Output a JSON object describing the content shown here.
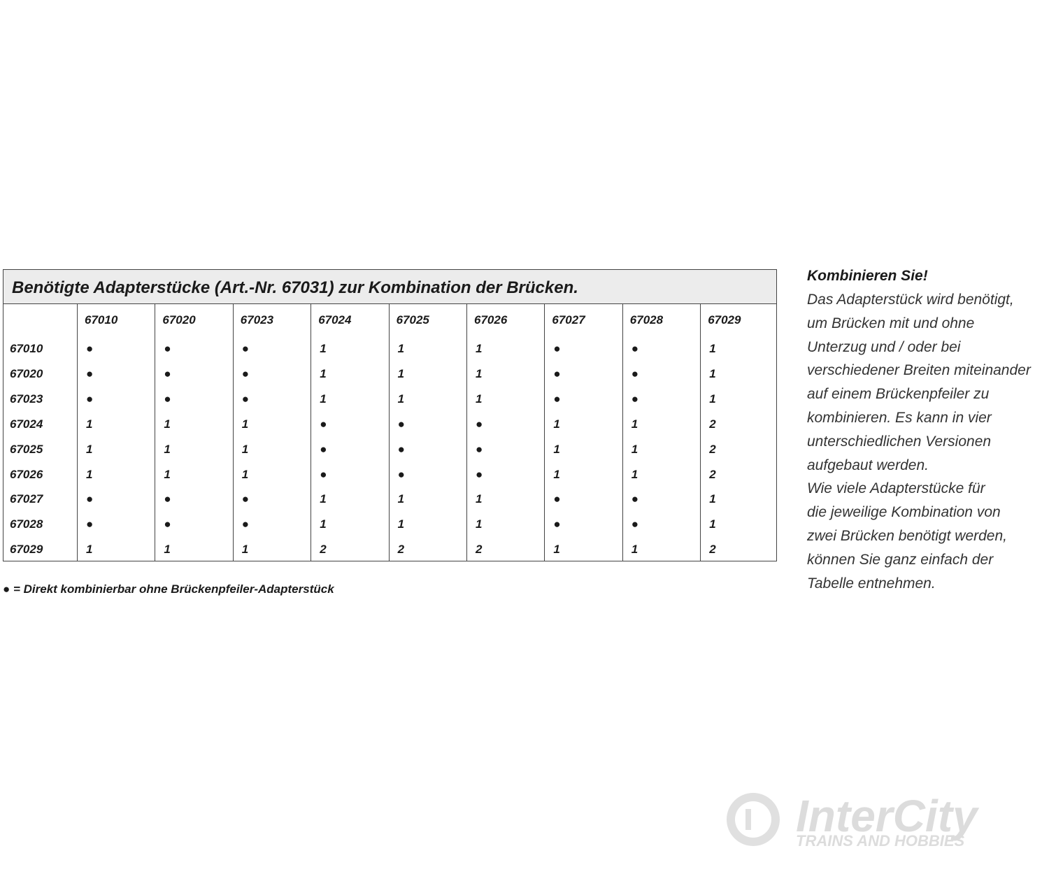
{
  "table": {
    "title": "Benötigte Adapterstücke (Art.-Nr. 67031) zur Kombination der Brücken.",
    "columns": [
      "67010",
      "67020",
      "67023",
      "67024",
      "67025",
      "67026",
      "67027",
      "67028",
      "67029"
    ],
    "rows": [
      {
        "label": "67010",
        "cells": [
          "●",
          "●",
          "●",
          "1",
          "1",
          "1",
          "●",
          "●",
          "1"
        ]
      },
      {
        "label": "67020",
        "cells": [
          "●",
          "●",
          "●",
          "1",
          "1",
          "1",
          "●",
          "●",
          "1"
        ]
      },
      {
        "label": "67023",
        "cells": [
          "●",
          "●",
          "●",
          "1",
          "1",
          "1",
          "●",
          "●",
          "1"
        ]
      },
      {
        "label": "67024",
        "cells": [
          "1",
          "1",
          "1",
          "●",
          "●",
          "●",
          "1",
          "1",
          "2"
        ]
      },
      {
        "label": "67025",
        "cells": [
          "1",
          "1",
          "1",
          "●",
          "●",
          "●",
          "1",
          "1",
          "2"
        ]
      },
      {
        "label": "67026",
        "cells": [
          "1",
          "1",
          "1",
          "●",
          "●",
          "●",
          "1",
          "1",
          "2"
        ]
      },
      {
        "label": "67027",
        "cells": [
          "●",
          "●",
          "●",
          "1",
          "1",
          "1",
          "●",
          "●",
          "1"
        ]
      },
      {
        "label": "67028",
        "cells": [
          "●",
          "●",
          "●",
          "1",
          "1",
          "1",
          "●",
          "●",
          "1"
        ]
      },
      {
        "label": "67029",
        "cells": [
          "1",
          "1",
          "1",
          "2",
          "2",
          "2",
          "1",
          "1",
          "2"
        ]
      }
    ],
    "footnote": "● = Direkt kombinierbar ohne Brückenpfeiler-Adapterstück"
  },
  "sidebar": {
    "heading": "Kombinieren Sie!",
    "lines": [
      "Das Adapterstück wird benötigt,",
      "um Brücken mit und ohne",
      "Unterzug und / oder bei",
      "verschiedener Breiten miteinander",
      "auf einem Brückenpfeiler zu",
      "kombinieren. Es kann in vier",
      "unterschiedlichen Versionen",
      "aufgebaut werden.",
      "Wie viele Adapterstücke für",
      "die jeweilige Kombination von",
      "zwei Brücken benötigt werden,",
      "können Sie ganz einfach der",
      "Tabelle entnehmen."
    ]
  },
  "watermark": {
    "brand": "InterCity",
    "tagline": "TRAINS AND HOBBIES"
  }
}
